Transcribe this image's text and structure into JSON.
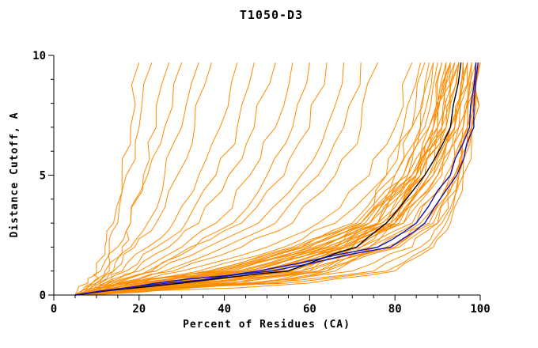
{
  "chart_data": {
    "type": "line",
    "title": "T1050-D3",
    "xlabel": "Percent of Residues (CA)",
    "ylabel": "Distance Cutoff, A",
    "xlim": [
      0,
      100
    ],
    "ylim": [
      0,
      10
    ],
    "x_ticks": [
      0,
      20,
      40,
      60,
      80,
      100
    ],
    "y_ticks": [
      0,
      5,
      10
    ],
    "x_minor_step": 5,
    "y_minor_step": 1,
    "grid": false,
    "legend": "none",
    "colors": {
      "predictions": "#ff8c00",
      "reference": "#000000",
      "highlight": "#1414b8",
      "axis": "#000000",
      "background": "#ffffff"
    },
    "y_anchors": [
      0,
      0.5,
      1,
      2,
      3,
      5,
      7,
      9.7
    ],
    "series": {
      "black_x": [
        5,
        30,
        55,
        71,
        78,
        87,
        93,
        95.5
      ],
      "blue_x": [
        [
          5,
          24,
          48,
          76,
          85,
          93,
          97.5,
          99
        ],
        [
          5,
          27,
          51,
          79,
          87,
          94.5,
          98.5,
          99.5
        ]
      ],
      "orange_x": [
        [
          5,
          8,
          10,
          12,
          14,
          16,
          18,
          20
        ],
        [
          6,
          9,
          11,
          13,
          15,
          17,
          20,
          23
        ],
        [
          7,
          10,
          13,
          16,
          18,
          21,
          24,
          27
        ],
        [
          5,
          9,
          12,
          15,
          18,
          22,
          26,
          30
        ],
        [
          8,
          11,
          14,
          18,
          22,
          26,
          30,
          34
        ],
        [
          6,
          10,
          14,
          19,
          24,
          29,
          33,
          37
        ],
        [
          7,
          12,
          16,
          22,
          28,
          34,
          39,
          43
        ],
        [
          5,
          11,
          17,
          24,
          31,
          38,
          43,
          47
        ],
        [
          8,
          13,
          19,
          27,
          34,
          41,
          47,
          52
        ],
        [
          6,
          12,
          20,
          30,
          38,
          46,
          52,
          56
        ],
        [
          9,
          15,
          23,
          33,
          42,
          50,
          56,
          60
        ],
        [
          7,
          14,
          22,
          32,
          44,
          54,
          60,
          64
        ],
        [
          5,
          13,
          24,
          36,
          48,
          58,
          64,
          68
        ],
        [
          8,
          16,
          26,
          40,
          52,
          62,
          68,
          72
        ],
        [
          6,
          15,
          28,
          44,
          56,
          66,
          72,
          76
        ],
        [
          5,
          18,
          30,
          50,
          62,
          74,
          80,
          84
        ],
        [
          7,
          20,
          34,
          54,
          66,
          78,
          84,
          87
        ],
        [
          6,
          22,
          38,
          58,
          70,
          80,
          86,
          89
        ],
        [
          8,
          24,
          40,
          60,
          72,
          82,
          88,
          91
        ],
        [
          5,
          26,
          44,
          62,
          74,
          84,
          89,
          92
        ],
        [
          7,
          28,
          46,
          64,
          76,
          85,
          90,
          93
        ],
        [
          6,
          30,
          48,
          66,
          78,
          86,
          91,
          94
        ],
        [
          8,
          32,
          50,
          68,
          80,
          87,
          92,
          95
        ],
        [
          5,
          25,
          45,
          65,
          78,
          87,
          92,
          95
        ],
        [
          7,
          27,
          47,
          67,
          80,
          88,
          93,
          96
        ],
        [
          6,
          29,
          49,
          69,
          81,
          89,
          94,
          96
        ],
        [
          8,
          31,
          51,
          71,
          82,
          90,
          94,
          97
        ],
        [
          5,
          23,
          43,
          63,
          77,
          87,
          93,
          96
        ],
        [
          7,
          21,
          41,
          61,
          76,
          86,
          92,
          95
        ],
        [
          6,
          19,
          39,
          59,
          74,
          85,
          91,
          94
        ],
        [
          8,
          17,
          37,
          57,
          72,
          84,
          90,
          93
        ],
        [
          5,
          16,
          36,
          56,
          71,
          83,
          89,
          93
        ],
        [
          7,
          18,
          38,
          58,
          73,
          85,
          91,
          95
        ],
        [
          6,
          20,
          42,
          62,
          77,
          88,
          93,
          97
        ],
        [
          8,
          22,
          44,
          64,
          79,
          89,
          94,
          97
        ],
        [
          5,
          24,
          46,
          66,
          80,
          90,
          95,
          98
        ],
        [
          7,
          26,
          48,
          68,
          82,
          91,
          95,
          98
        ],
        [
          6,
          28,
          52,
          72,
          84,
          92,
          96,
          98
        ],
        [
          8,
          30,
          54,
          74,
          85,
          93,
          96,
          99
        ],
        [
          5,
          32,
          56,
          76,
          86,
          93,
          97,
          99
        ],
        [
          7,
          34,
          58,
          78,
          87,
          94,
          97,
          99
        ],
        [
          6,
          36,
          60,
          79,
          88,
          94,
          97,
          99
        ],
        [
          8,
          38,
          62,
          80,
          89,
          95,
          98,
          100
        ],
        [
          5,
          40,
          64,
          81,
          90,
          95,
          98,
          100
        ],
        [
          6,
          45,
          70,
          84,
          90,
          94,
          97,
          99
        ],
        [
          7,
          50,
          75,
          86,
          91,
          95,
          98,
          100
        ],
        [
          5,
          55,
          78,
          88,
          92,
          96,
          98,
          100
        ],
        [
          8,
          60,
          80,
          89,
          93,
          96,
          98,
          100
        ],
        [
          6,
          35,
          55,
          70,
          78,
          84,
          88,
          91
        ],
        [
          7,
          33,
          53,
          68,
          76,
          83,
          87,
          90
        ],
        [
          5,
          42,
          58,
          66,
          72,
          78,
          82,
          86
        ],
        [
          8,
          44,
          60,
          68,
          74,
          80,
          84,
          88
        ],
        [
          6,
          46,
          62,
          70,
          76,
          82,
          86,
          89
        ],
        [
          7,
          48,
          64,
          72,
          79,
          85,
          89,
          92
        ],
        [
          5,
          52,
          66,
          74,
          80,
          86,
          90,
          93
        ]
      ]
    }
  }
}
